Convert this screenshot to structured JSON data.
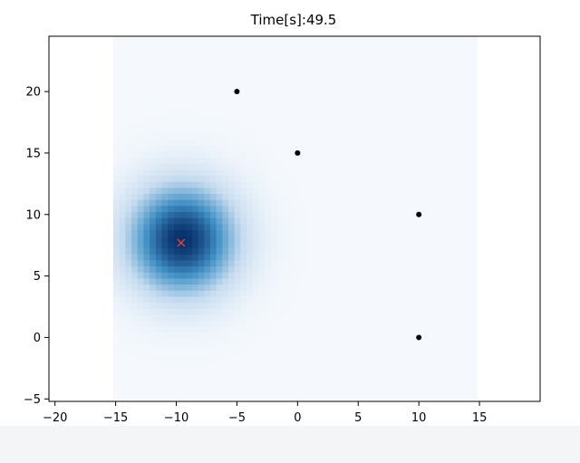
{
  "chart_data": {
    "type": "heatmap",
    "title": "Time[s]:49.5",
    "xlabel": "",
    "ylabel": "",
    "xlim": [
      -20.5,
      20
    ],
    "ylim": [
      -5.2,
      24.5
    ],
    "xticks": [
      -20,
      -15,
      -10,
      -5,
      0,
      5,
      10,
      15
    ],
    "yticks": [
      -5,
      0,
      5,
      10,
      15,
      20
    ],
    "grid": false,
    "legend": "none",
    "heatmap": {
      "extent_x": [
        -15.2,
        14.8
      ],
      "extent_y": [
        -5.0,
        24.5
      ],
      "peak_center": [
        -9.5,
        8.0
      ],
      "peak_sigma": 3.2,
      "colormap": "Blues",
      "background_color": "#f5f9fd",
      "peak_color": "#08306b"
    },
    "sensors": {
      "color": "#000000",
      "points": [
        {
          "x": -5,
          "y": 20
        },
        {
          "x": 0,
          "y": 15
        },
        {
          "x": 10,
          "y": 10
        },
        {
          "x": 10,
          "y": 0
        }
      ]
    },
    "estimate": {
      "color": "#e8473e",
      "marker": "x",
      "x": -9.6,
      "y": 7.7
    }
  }
}
